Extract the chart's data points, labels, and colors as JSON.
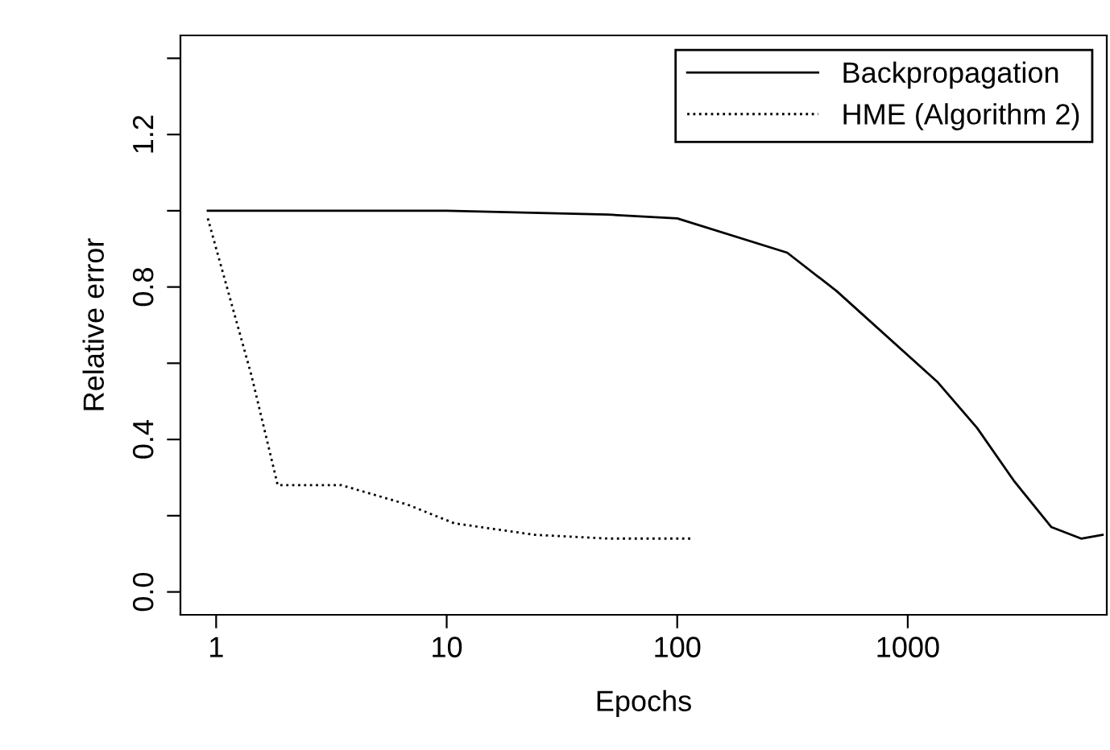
{
  "chart_data": {
    "type": "line",
    "xlabel": "Epochs",
    "ylabel": "Relative error",
    "log": "x",
    "xlim": [
      0.7,
      7300
    ],
    "xticks": [
      1,
      10,
      100,
      1000
    ],
    "ylim": [
      -0.06,
      1.46
    ],
    "yticks": [
      {
        "value": 0.0,
        "label": "0.0"
      },
      {
        "value": 0.2,
        "label": null
      },
      {
        "value": 0.4,
        "label": "0.4"
      },
      {
        "value": 0.6,
        "label": null
      },
      {
        "value": 0.8,
        "label": "0.8"
      },
      {
        "value": 1.0,
        "label": null
      },
      {
        "value": 1.2,
        "label": "1.2"
      },
      {
        "value": 1.4,
        "label": null
      }
    ],
    "grid": false,
    "legend": "top right",
    "series": [
      {
        "name": "Backpropagation",
        "color": "#000000",
        "line_style": "solid",
        "x": [
          0.92,
          10,
          50,
          100,
          300,
          490,
          1350,
          2000,
          2900,
          4200,
          5650,
          7000
        ],
        "values": [
          1.0,
          1.0,
          0.99,
          0.98,
          0.89,
          0.79,
          0.55,
          0.43,
          0.29,
          0.17,
          0.14,
          0.15
        ]
      },
      {
        "name": "HME (Algorithm 2)",
        "color": "#000000",
        "line_style": "dotted",
        "x": [
          0.92,
          1.42,
          1.85,
          3.5,
          6.7,
          10.8,
          24,
          50,
          115
        ],
        "values": [
          0.98,
          0.57,
          0.28,
          0.28,
          0.23,
          0.18,
          0.15,
          0.14,
          0.14
        ]
      }
    ]
  }
}
